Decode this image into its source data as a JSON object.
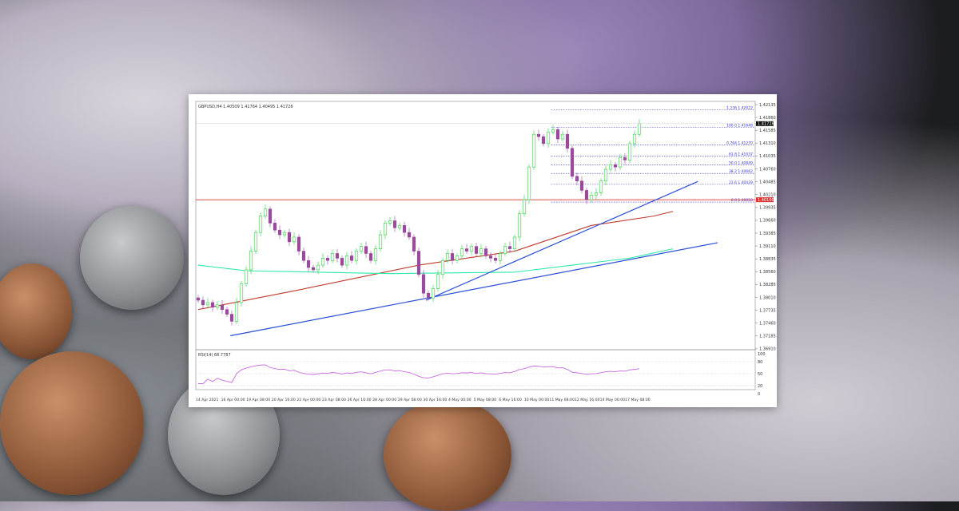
{
  "chart_data": {
    "type": "candlestick",
    "title": "GBPUSD,H4 1.40509 1.41764 1.40495 1.41728",
    "symbol": "GBPUSD,H4",
    "ohlc_header": [
      "1.40509",
      "1.41764",
      "1.40495",
      "1.41728"
    ],
    "ylim": [
      1.3691,
      1.42135
    ],
    "price_ticks": [
      "1.42135",
      "1.41860",
      "1.41585",
      "1.41310",
      "1.41035",
      "1.40760",
      "1.40485",
      "1.40210",
      "1.39935",
      "1.39660",
      "1.39385",
      "1.39110",
      "1.38835",
      "1.38560",
      "1.38285",
      "1.38010",
      "1.37735",
      "1.37460",
      "1.37185",
      "1.36910"
    ],
    "current_price": "1.41728",
    "horizontal_line": {
      "price": 1.401,
      "label": "1.40100",
      "color": "#e03030"
    },
    "x_labels": [
      "14 Apr 2021",
      "16 Apr 00:00",
      "19 Apr 08:00",
      "20 Apr 16:00",
      "22 Apr 00:00",
      "23 Apr 08:00",
      "26 Apr 16:00",
      "28 Apr 00:00",
      "29 Apr 08:00",
      "30 Apr 16:00",
      "4 May 00:00",
      "5 May 08:00",
      "6 May 16:00",
      "10 May 00:00",
      "11 May 08:00",
      "12 May 16:00",
      "14 May 00:00",
      "17 May 08:00"
    ],
    "closes": [
      1.3795,
      1.3785,
      1.379,
      1.378,
      1.3785,
      1.3775,
      1.3765,
      1.375,
      1.379,
      1.383,
      1.386,
      1.39,
      1.394,
      1.3975,
      1.399,
      1.396,
      1.3945,
      1.3935,
      1.394,
      1.392,
      1.393,
      1.39,
      1.388,
      1.3865,
      1.386,
      1.387,
      1.3885,
      1.388,
      1.3895,
      1.3885,
      1.387,
      1.389,
      1.388,
      1.39,
      1.391,
      1.3895,
      1.388,
      1.3905,
      1.3935,
      1.396,
      1.3965,
      1.395,
      1.3955,
      1.394,
      1.393,
      1.39,
      1.385,
      1.381,
      1.38,
      1.382,
      1.385,
      1.388,
      1.3895,
      1.388,
      1.389,
      1.3905,
      1.39,
      1.391,
      1.3895,
      1.3905,
      1.389,
      1.3885,
      1.388,
      1.3895,
      1.391,
      1.3905,
      1.393,
      1.398,
      1.401,
      1.408,
      1.415,
      1.4145,
      1.413,
      1.4155,
      1.416,
      1.414,
      1.415,
      1.412,
      1.406,
      1.405,
      1.403,
      1.401,
      1.402,
      1.4025,
      1.405,
      1.4075,
      1.4085,
      1.408,
      1.41,
      1.4095,
      1.413,
      1.415,
      1.4173
    ],
    "first_open": 1.38,
    "moving_averages": [
      {
        "color": "#c0392b",
        "points": [
          [
            0,
            1.3775
          ],
          [
            20,
            1.3815
          ],
          [
            46,
            1.387
          ],
          [
            66,
            1.39
          ],
          [
            82,
            1.3955
          ],
          [
            95,
            1.3975
          ],
          [
            99,
            1.3985
          ]
        ]
      },
      {
        "color": "#2ee8a8",
        "points": [
          [
            0,
            1.387
          ],
          [
            10,
            1.3858
          ],
          [
            40,
            1.3852
          ],
          [
            66,
            1.3855
          ],
          [
            78,
            1.387
          ],
          [
            90,
            1.3885
          ],
          [
            99,
            1.3905
          ]
        ]
      }
    ],
    "trendlines": [
      {
        "color": "#2a4fd8",
        "from": [
          6.7,
          1.3719
        ],
        "to": [
          108.3,
          1.3918
        ]
      },
      {
        "color": "#2a4fd8",
        "from": [
          47.5,
          1.3795
        ],
        "to": [
          104.2,
          1.4049
        ]
      }
    ],
    "fibonacci": [
      {
        "label": "1.236 1.42022",
        "price": 1.42022
      },
      {
        "label": "100.0 1.41648",
        "price": 1.41648
      },
      {
        "label": "0.764 1.41270",
        "price": 1.4127
      },
      {
        "label": "61.8 1.41037",
        "price": 1.41037
      },
      {
        "label": "50.0 1.40849",
        "price": 1.40849
      },
      {
        "label": "38.2 1.40662",
        "price": 1.40662
      },
      {
        "label": "23.6 1.40429",
        "price": 1.40429
      },
      {
        "label": "0.0 1.40050",
        "price": 1.4005
      }
    ],
    "rsi": {
      "label": "RSI(14) 68.7787",
      "period": 14,
      "levels": [
        80,
        50,
        20
      ],
      "ticks": [
        "100",
        "80",
        "50",
        "20",
        "0"
      ],
      "color": "#c86be0"
    },
    "colors": {
      "bull": "#2ecc40",
      "bear": "#9a4a9a",
      "fib": "#3333cc"
    }
  }
}
